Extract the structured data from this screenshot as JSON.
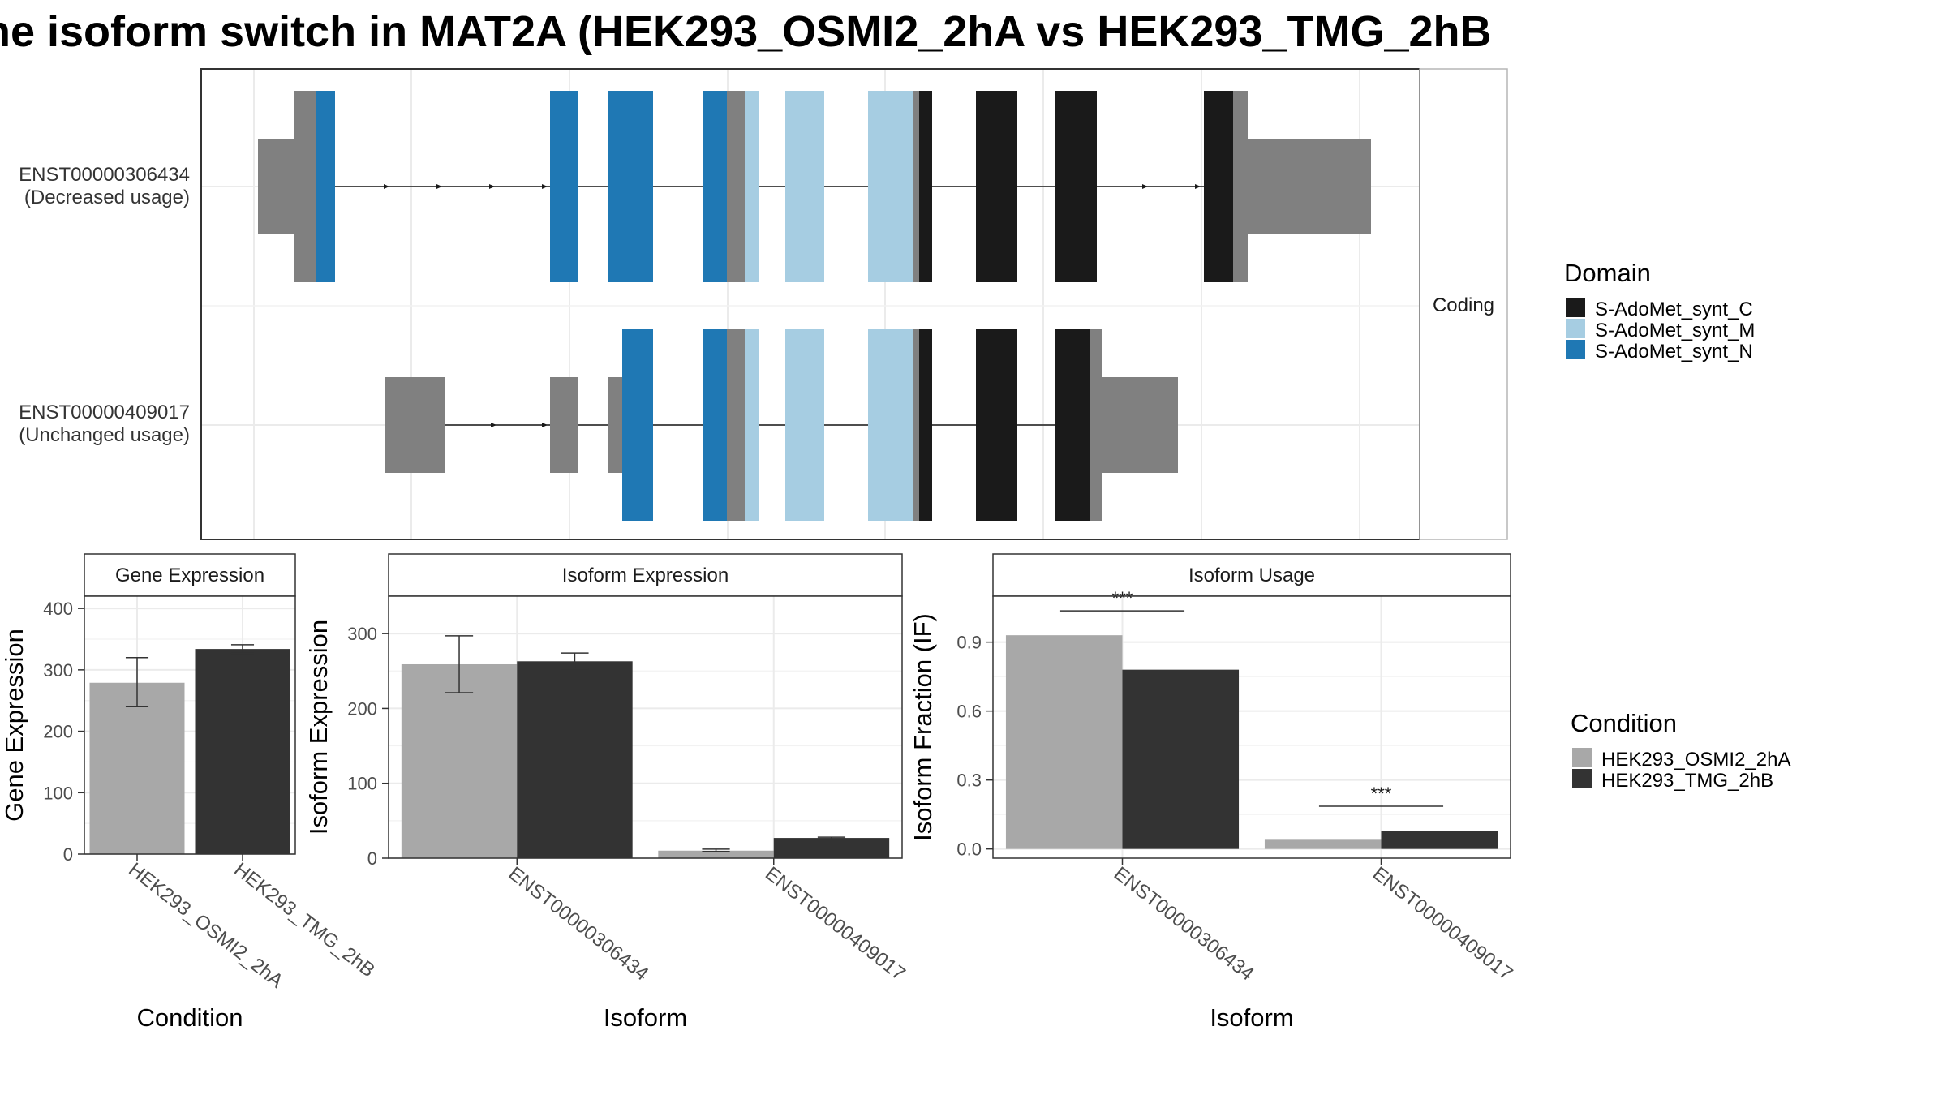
{
  "title": "he isoform switch in MAT2A (HEK293_OSMI2_2hA vs HEK293_TMG_2hB",
  "colors": {
    "utr": "#808080",
    "S-AdoMet_synt_C": "#1a1a1a",
    "S-AdoMet_synt_M": "#a6cde2",
    "S-AdoMet_synt_N": "#1f78b4",
    "cond_A": "#a8a8a8",
    "cond_B": "#333333"
  },
  "structure": {
    "facet_label": "Coding",
    "transcripts": [
      {
        "id": "ENST00000306434",
        "note": "(Decreased usage)"
      },
      {
        "id": "ENST00000409017",
        "note": "(Unchanged usage)"
      }
    ]
  },
  "legends": {
    "domain_title": "Domain",
    "domain_items": [
      "S-AdoMet_synt_C",
      "S-AdoMet_synt_M",
      "S-AdoMet_synt_N"
    ],
    "condition_title": "Condition",
    "condition_items": [
      "HEK293_OSMI2_2hA",
      "HEK293_TMG_2hB"
    ]
  },
  "chart_data": [
    {
      "type": "bar",
      "panel": "Gene Expression",
      "xlabel": "Condition",
      "ylabel": "Gene Expression",
      "ylim": [
        0,
        420
      ],
      "yticks": [
        0,
        100,
        200,
        300,
        400
      ],
      "categories": [
        "HEK293_OSMI2_2hA",
        "HEK293_TMG_2hB"
      ],
      "values": [
        279,
        334
      ],
      "error": [
        [
          240,
          320
        ],
        [
          327,
          341
        ]
      ]
    },
    {
      "type": "bar",
      "panel": "Isoform Expression",
      "xlabel": "Isoform",
      "ylabel": "Isoform Expression",
      "ylim": [
        0,
        350
      ],
      "yticks": [
        0,
        100,
        200,
        300
      ],
      "categories": [
        "ENST00000306434",
        "ENST00000409017"
      ],
      "series": [
        {
          "name": "HEK293_OSMI2_2hA",
          "values": [
            259,
            10
          ],
          "error": [
            [
              221,
              297
            ],
            [
              9,
              12
            ]
          ]
        },
        {
          "name": "HEK293_TMG_2hB",
          "values": [
            263,
            27
          ],
          "error": [
            [
              253,
              274
            ],
            [
              26,
              28
            ]
          ]
        }
      ]
    },
    {
      "type": "bar",
      "panel": "Isoform Usage",
      "xlabel": "Isoform",
      "ylabel": "Isoform Fraction (IF)",
      "ylim": [
        -0.04,
        1.1
      ],
      "yticks": [
        "0.0",
        "0.3",
        "0.6",
        "0.9"
      ],
      "categories": [
        "ENST00000306434",
        "ENST00000409017"
      ],
      "series": [
        {
          "name": "HEK293_OSMI2_2hA",
          "values": [
            0.93,
            0.04
          ]
        },
        {
          "name": "HEK293_TMG_2hB",
          "values": [
            0.78,
            0.08
          ]
        }
      ],
      "annotations": [
        "***",
        "***"
      ]
    }
  ]
}
